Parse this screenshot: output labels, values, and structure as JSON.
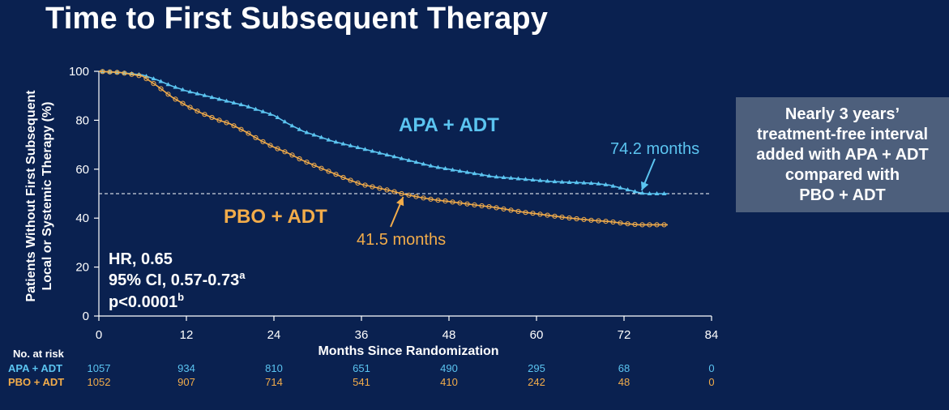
{
  "title": "Time to First Subsequent Therapy",
  "callout_lines": [
    "Nearly 3 years’",
    "treatment-free interval",
    "added with APA + ADT",
    "compared with",
    "PBO + ADT"
  ],
  "colors": {
    "apa": "#5bc4f0",
    "pbo": "#f2ac4a",
    "background": "#0a2150",
    "callout": "#4d5f7c"
  },
  "chart_data": {
    "type": "line",
    "title": "Time to First Subsequent Therapy",
    "xlabel": "Months Since Randomization",
    "ylabel_lines": [
      "Patients Without First Subsequent",
      "Local or Systemic Therapy (%)"
    ],
    "xlim": [
      0,
      84
    ],
    "ylim": [
      0,
      100
    ],
    "xticks": [
      "0",
      "12",
      "24",
      "36",
      "48",
      "60",
      "72",
      "84"
    ],
    "yticks": [
      "0",
      "20",
      "40",
      "60",
      "80",
      "100"
    ],
    "reference_line_y": 50,
    "series": [
      {
        "name": "APA + ADT",
        "marker": "triangle",
        "x": [
          0,
          3,
          6,
          8,
          10,
          12,
          14,
          16,
          18,
          20,
          22,
          24,
          26,
          28,
          30,
          32,
          34,
          36,
          38,
          40,
          42,
          44,
          46,
          48,
          50,
          52,
          54,
          56,
          58,
          60,
          62,
          64,
          66,
          68,
          70,
          72,
          74,
          75,
          78
        ],
        "y": [
          100,
          99.5,
          98.5,
          96.5,
          94,
          92,
          90.5,
          89,
          87.5,
          86,
          84,
          82,
          78.5,
          75.5,
          73.5,
          71.5,
          70,
          68.5,
          67,
          65.5,
          64,
          62.5,
          61,
          60,
          59,
          58,
          57,
          56.5,
          56,
          55.5,
          55,
          54.7,
          54.5,
          54.2,
          53.5,
          52,
          50.5,
          50,
          50
        ]
      },
      {
        "name": "PBO + ADT",
        "marker": "circle",
        "x": [
          0,
          3,
          6,
          8,
          10,
          12,
          14,
          16,
          18,
          20,
          22,
          24,
          26,
          28,
          30,
          32,
          34,
          36,
          38,
          40,
          41.5,
          44,
          46,
          48,
          50,
          52,
          54,
          56,
          58,
          60,
          62,
          64,
          66,
          68,
          70,
          72,
          74,
          76,
          78
        ],
        "y": [
          100,
          99.5,
          98,
          94,
          89.5,
          86,
          83,
          80.5,
          78.5,
          75.5,
          72,
          69,
          66.5,
          63.5,
          61,
          58.5,
          56,
          53.8,
          52.5,
          51.2,
          50,
          48.5,
          47.5,
          46.8,
          46,
          45.2,
          44.5,
          43.5,
          42.5,
          41.8,
          41,
          40.2,
          39.6,
          39,
          38.6,
          37.8,
          37.3,
          37.3,
          37.3
        ]
      }
    ],
    "series_labels": [
      "APA + ADT",
      "PBO + ADT"
    ],
    "annotations": [
      {
        "text": "74.2 months",
        "series": "APA + ADT",
        "x": 74.2,
        "y": 50
      },
      {
        "text": "41.5 months",
        "series": "PBO + ADT",
        "x": 41.5,
        "y": 50
      }
    ],
    "stats": {
      "hr": "HR, 0.65",
      "ci": "95% CI, 0.57-0.73",
      "ci_sup": "a",
      "p": "p<0.0001",
      "p_sup": "b"
    },
    "risk_table": {
      "header": "No. at risk",
      "rows": [
        {
          "label": "APA + ADT",
          "values": [
            "1057",
            "934",
            "810",
            "651",
            "490",
            "295",
            "68",
            "0"
          ]
        },
        {
          "label": "PBO + ADT",
          "values": [
            "1052",
            "907",
            "714",
            "541",
            "410",
            "242",
            "48",
            "0"
          ]
        }
      ]
    }
  }
}
